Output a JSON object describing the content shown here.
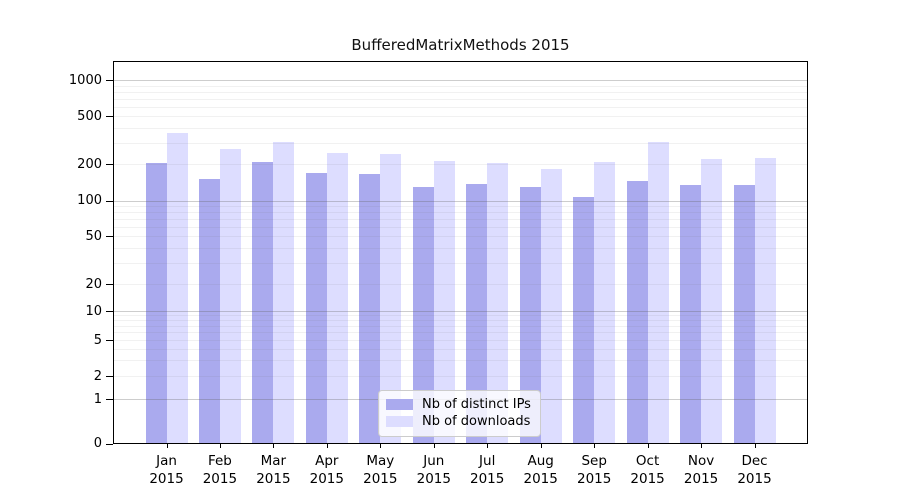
{
  "title": "BufferedMatrixMethods 2015",
  "chart_data": {
    "type": "bar",
    "title": "BufferedMatrixMethods 2015",
    "scale_y": "log-like (ticks 0,1,2,5,10,20,50,100,200,500,1000)",
    "grid": true,
    "legend_position": "bottom-center-inside",
    "year": "2015",
    "months": [
      "Jan",
      "Feb",
      "Mar",
      "Apr",
      "May",
      "Jun",
      "Jul",
      "Aug",
      "Sep",
      "Oct",
      "Nov",
      "Dec"
    ],
    "categories": [
      "Jan 2015",
      "Feb 2015",
      "Mar 2015",
      "Apr 2015",
      "May 2015",
      "Jun 2015",
      "Jul 2015",
      "Aug 2015",
      "Sep 2015",
      "Oct 2015",
      "Nov 2015",
      "Dec 2015"
    ],
    "y_ticks": [
      1000,
      500,
      200,
      100,
      50,
      20,
      10,
      5,
      2,
      1,
      0
    ],
    "ylim": [
      0,
      1400
    ],
    "series": [
      {
        "name": "Nb of distinct IPs",
        "color": "#aaaaee",
        "values": [
          205,
          150,
          210,
          169,
          166,
          130,
          138,
          130,
          108,
          146,
          135,
          135
        ]
      },
      {
        "name": "Nb of downloads",
        "color": "#ddddff",
        "values": [
          360,
          268,
          305,
          250,
          242,
          215,
          206,
          184,
          210,
          304,
          222,
          227
        ]
      }
    ]
  }
}
